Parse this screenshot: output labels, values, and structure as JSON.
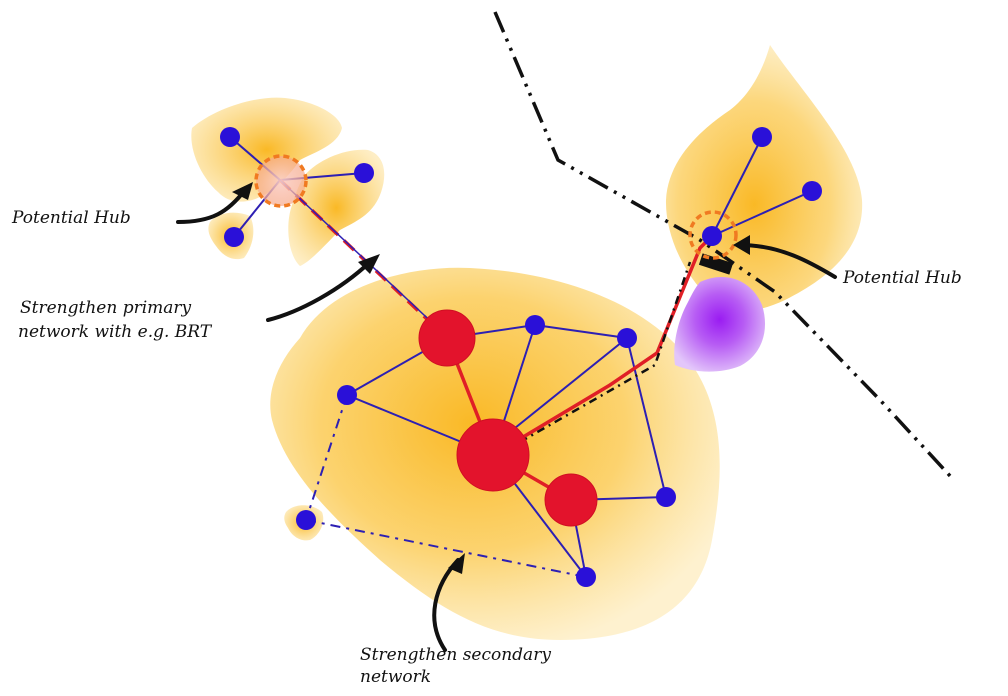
{
  "diagram": {
    "labels": {
      "hub_left": "Potential Hub",
      "hub_right": "Potential Hub",
      "primary_line1": "Strengthen primary",
      "primary_line2": "network with e.g. BRT",
      "secondary_line1": "Strengthen  secondary",
      "secondary_line2": "network"
    },
    "colors": {
      "catchment": "#f9b51a",
      "node": "#2a10d8",
      "link": "#2d1fb3",
      "major_node": "#e3132c",
      "primary_link": "#e01f26",
      "hub_ring": "#f07a21",
      "boundary": "#111111",
      "purple_zone": "#a12cf0",
      "annotation": "#111111"
    }
  }
}
